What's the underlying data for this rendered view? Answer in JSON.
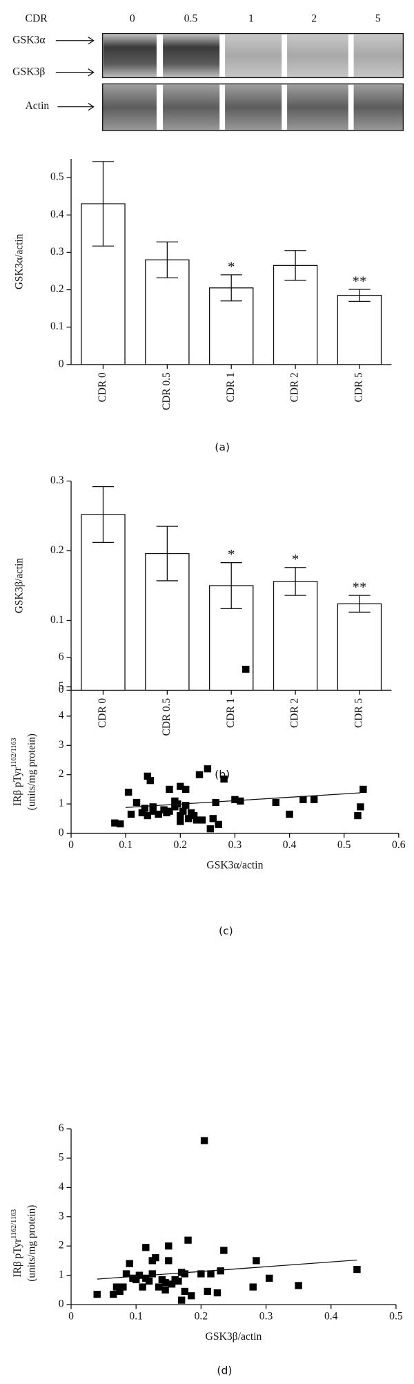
{
  "blot": {
    "header": "CDR",
    "lanes": [
      "0",
      "0.5",
      "1",
      "2",
      "5"
    ],
    "bands": [
      "GSK3α",
      "GSK3β"
    ],
    "control": "Actin"
  },
  "chart_data": [
    {
      "type": "bar",
      "panel": "(a)",
      "ylabel": "GSK3α/actin",
      "categories": [
        "CDR 0",
        "CDR 0.5",
        "CDR 1",
        "CDR 2",
        "CDR 5"
      ],
      "values": [
        0.43,
        0.28,
        0.205,
        0.265,
        0.185
      ],
      "errors": [
        0.113,
        0.048,
        0.035,
        0.04,
        0.016
      ],
      "significance": [
        null,
        null,
        "*",
        null,
        "**"
      ],
      "color": "#ffffff",
      "ylim": [
        0,
        0.55
      ],
      "yticks": [
        0,
        0.1,
        0.2,
        0.3,
        0.4,
        0.5
      ]
    },
    {
      "type": "bar",
      "panel": "(b)",
      "ylabel": "GSK3β/actin",
      "categories": [
        "CDR 0",
        "CDR 0.5",
        "CDR 1",
        "CDR 2",
        "CDR 5"
      ],
      "values": [
        0.252,
        0.196,
        0.15,
        0.156,
        0.124
      ],
      "errors": [
        0.04,
        0.039,
        0.033,
        0.02,
        0.012
      ],
      "significance": [
        null,
        null,
        "*",
        "*",
        "**"
      ],
      "color": "#ffffff",
      "ylim": [
        0,
        0.3
      ],
      "yticks": [
        0,
        0.1,
        0.2,
        0.3
      ]
    },
    {
      "type": "scatter",
      "panel": "(c)",
      "xlabel": "GSK3α/actin",
      "ylabel": [
        "IRβ pTyr",
        "1162/1163",
        "(units/mg protein)"
      ],
      "color": "#000000",
      "xlim": [
        0,
        0.6
      ],
      "xticks": [
        0,
        0.1,
        0.2,
        0.3,
        0.4,
        0.5,
        0.6
      ],
      "ylim": [
        0,
        6
      ],
      "yticks": [
        0,
        1,
        2,
        3,
        4,
        5,
        6
      ],
      "x": [
        0.08,
        0.09,
        0.105,
        0.11,
        0.12,
        0.13,
        0.135,
        0.14,
        0.14,
        0.145,
        0.15,
        0.15,
        0.16,
        0.17,
        0.175,
        0.18,
        0.18,
        0.19,
        0.19,
        0.195,
        0.2,
        0.2,
        0.2,
        0.205,
        0.21,
        0.21,
        0.215,
        0.22,
        0.225,
        0.23,
        0.235,
        0.24,
        0.25,
        0.255,
        0.26,
        0.265,
        0.27,
        0.28,
        0.3,
        0.31,
        0.32,
        0.375,
        0.4,
        0.425,
        0.445,
        0.525,
        0.53,
        0.535
      ],
      "y": [
        0.35,
        0.32,
        1.4,
        0.65,
        1.05,
        0.7,
        0.85,
        0.6,
        1.95,
        1.8,
        0.75,
        0.9,
        0.65,
        0.8,
        0.7,
        0.75,
        1.5,
        0.9,
        1.1,
        1.0,
        0.6,
        1.6,
        0.4,
        0.75,
        1.5,
        0.95,
        0.5,
        0.7,
        0.6,
        0.45,
        2.0,
        0.45,
        2.2,
        0.15,
        0.5,
        1.05,
        0.3,
        1.85,
        1.15,
        1.1,
        5.6,
        1.05,
        0.65,
        1.15,
        1.15,
        0.6,
        0.9,
        1.5
      ],
      "trendline": {
        "x": [
          0.1,
          0.53
        ],
        "y": [
          0.88,
          1.38
        ]
      }
    },
    {
      "type": "scatter",
      "panel": "(d)",
      "xlabel": "GSK3β/actin",
      "ylabel": [
        "IRβ pTyr",
        "1162/1163",
        "(units/mg protein)"
      ],
      "color": "#000000",
      "xlim": [
        0,
        0.5
      ],
      "xticks": [
        0,
        0.1,
        0.2,
        0.3,
        0.4,
        0.5
      ],
      "ylim": [
        0,
        6
      ],
      "yticks": [
        0,
        1,
        2,
        3,
        4,
        5,
        6
      ],
      "x": [
        0.04,
        0.065,
        0.07,
        0.075,
        0.08,
        0.085,
        0.09,
        0.095,
        0.1,
        0.105,
        0.11,
        0.115,
        0.115,
        0.12,
        0.125,
        0.125,
        0.13,
        0.135,
        0.14,
        0.145,
        0.145,
        0.15,
        0.15,
        0.155,
        0.16,
        0.165,
        0.17,
        0.17,
        0.175,
        0.175,
        0.18,
        0.185,
        0.2,
        0.205,
        0.21,
        0.215,
        0.225,
        0.23,
        0.235,
        0.28,
        0.285,
        0.305,
        0.35,
        0.44
      ],
      "y": [
        0.35,
        0.35,
        0.6,
        0.45,
        0.6,
        1.05,
        1.4,
        0.9,
        0.85,
        1.0,
        0.6,
        0.9,
        1.95,
        0.8,
        1.05,
        1.5,
        1.6,
        0.6,
        0.85,
        0.5,
        0.75,
        1.5,
        2.0,
        0.7,
        0.85,
        0.8,
        0.15,
        1.1,
        1.05,
        0.45,
        2.2,
        0.3,
        1.05,
        5.6,
        0.45,
        1.05,
        0.4,
        1.15,
        1.85,
        0.6,
        1.5,
        0.9,
        0.65,
        1.2
      ],
      "trendline": {
        "x": [
          0.04,
          0.44
        ],
        "y": [
          0.87,
          1.52
        ]
      }
    }
  ]
}
